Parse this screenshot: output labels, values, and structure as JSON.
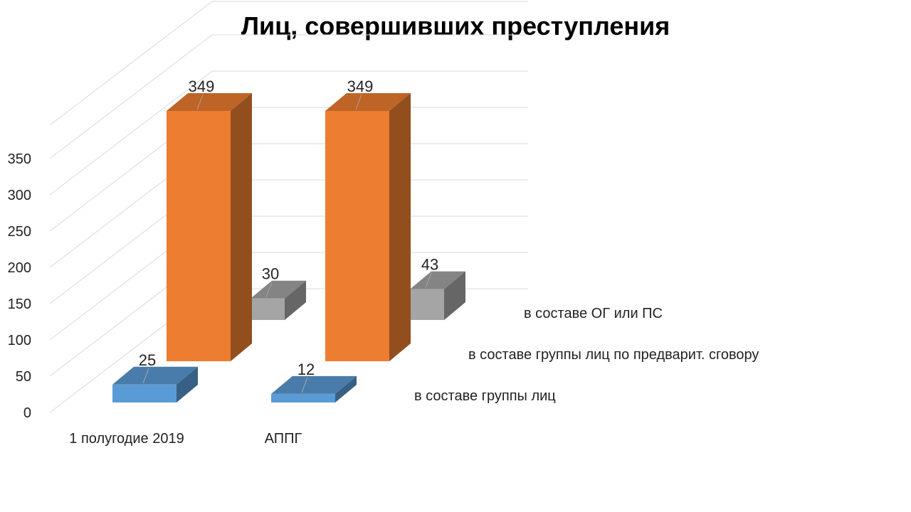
{
  "chart_data": {
    "type": "bar",
    "title": "Лиц, совершивших преступления",
    "categories": [
      "1 полугодие 2019",
      "АППГ"
    ],
    "series": [
      {
        "name": "в составе группы лиц",
        "values": [
          25,
          12
        ],
        "color": "#5b9bd5"
      },
      {
        "name": "в составе группы лиц по предварит. сговору",
        "values": [
          349,
          349
        ],
        "color": "#ed7d31"
      },
      {
        "name": "в составе ОГ или ПС",
        "values": [
          30,
          43
        ],
        "color": "#a5a5a5"
      }
    ],
    "ylim": [
      0,
      350
    ],
    "yticks": [
      "0",
      "50",
      "100",
      "150",
      "200",
      "250",
      "300",
      "350"
    ],
    "grid": true,
    "legend": "right (depth axis labels)"
  }
}
